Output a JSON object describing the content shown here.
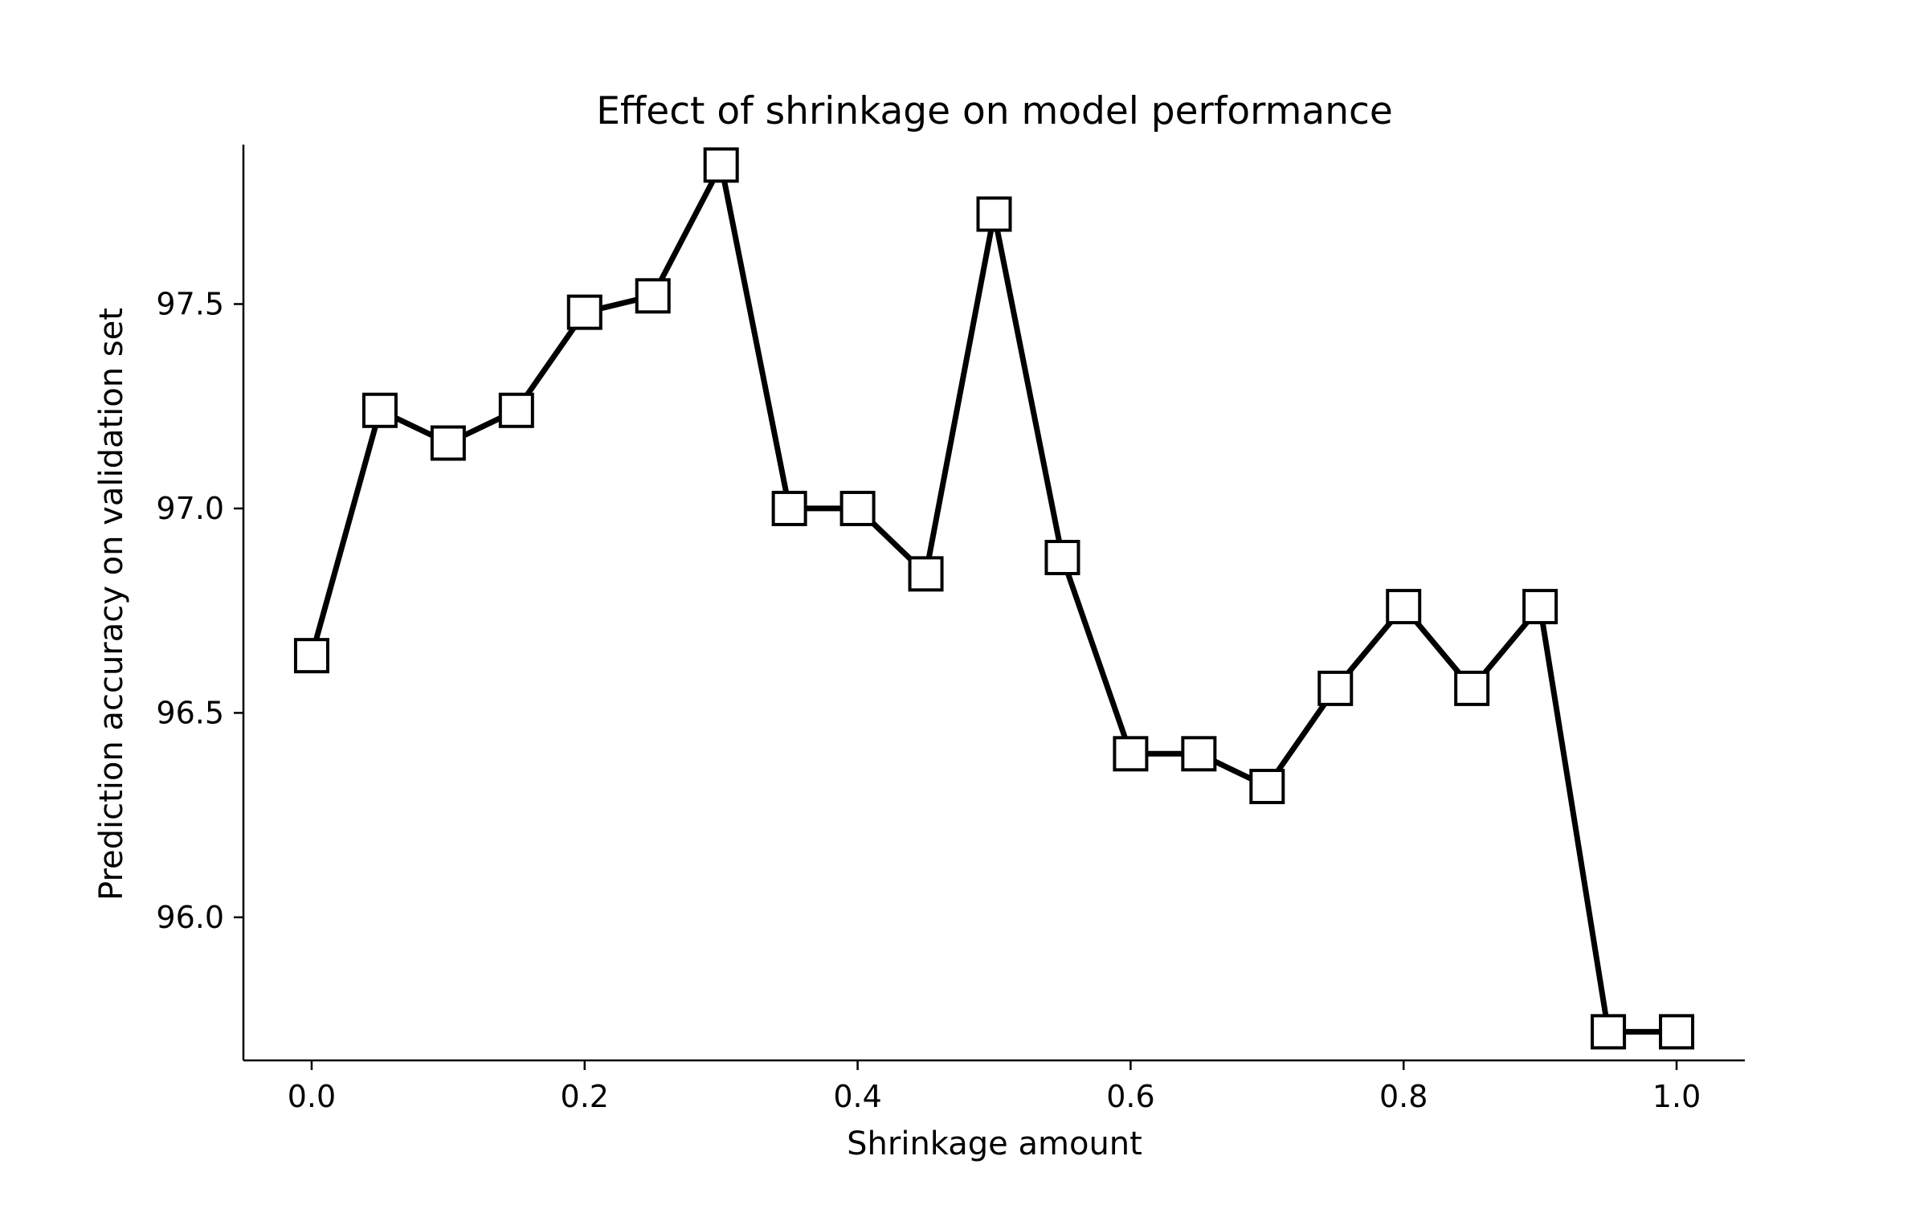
{
  "chart_data": {
    "type": "line",
    "title": "Effect of shrinkage on model performance",
    "xlabel": "Shrinkage amount",
    "ylabel": "Prediction accuracy on validation set",
    "xlim": [
      -0.05,
      1.05
    ],
    "ylim": [
      95.65,
      97.89
    ],
    "xticks": [
      0.0,
      0.2,
      0.4,
      0.6,
      0.8,
      1.0
    ],
    "xtick_labels": [
      "0.0",
      "0.2",
      "0.4",
      "0.6",
      "0.8",
      "1.0"
    ],
    "yticks": [
      96.0,
      96.5,
      97.0,
      97.5
    ],
    "ytick_labels": [
      "96.0",
      "96.5",
      "97.0",
      "97.5"
    ],
    "grid": false,
    "legend": "none",
    "series": [
      {
        "color": "#000000",
        "marker": "square",
        "marker_face": "#ffffff",
        "x": [
          0.0,
          0.05,
          0.1,
          0.15,
          0.2,
          0.25,
          0.3,
          0.35,
          0.4,
          0.45,
          0.5,
          0.55,
          0.6,
          0.65,
          0.7,
          0.75,
          0.8,
          0.85,
          0.9,
          0.95,
          1.0
        ],
        "y": [
          96.64,
          97.24,
          97.16,
          97.24,
          97.48,
          97.52,
          97.84,
          97.0,
          97.0,
          96.84,
          97.72,
          96.88,
          96.4,
          96.4,
          96.32,
          96.56,
          96.76,
          96.56,
          96.76,
          95.72,
          95.72
        ]
      }
    ]
  }
}
